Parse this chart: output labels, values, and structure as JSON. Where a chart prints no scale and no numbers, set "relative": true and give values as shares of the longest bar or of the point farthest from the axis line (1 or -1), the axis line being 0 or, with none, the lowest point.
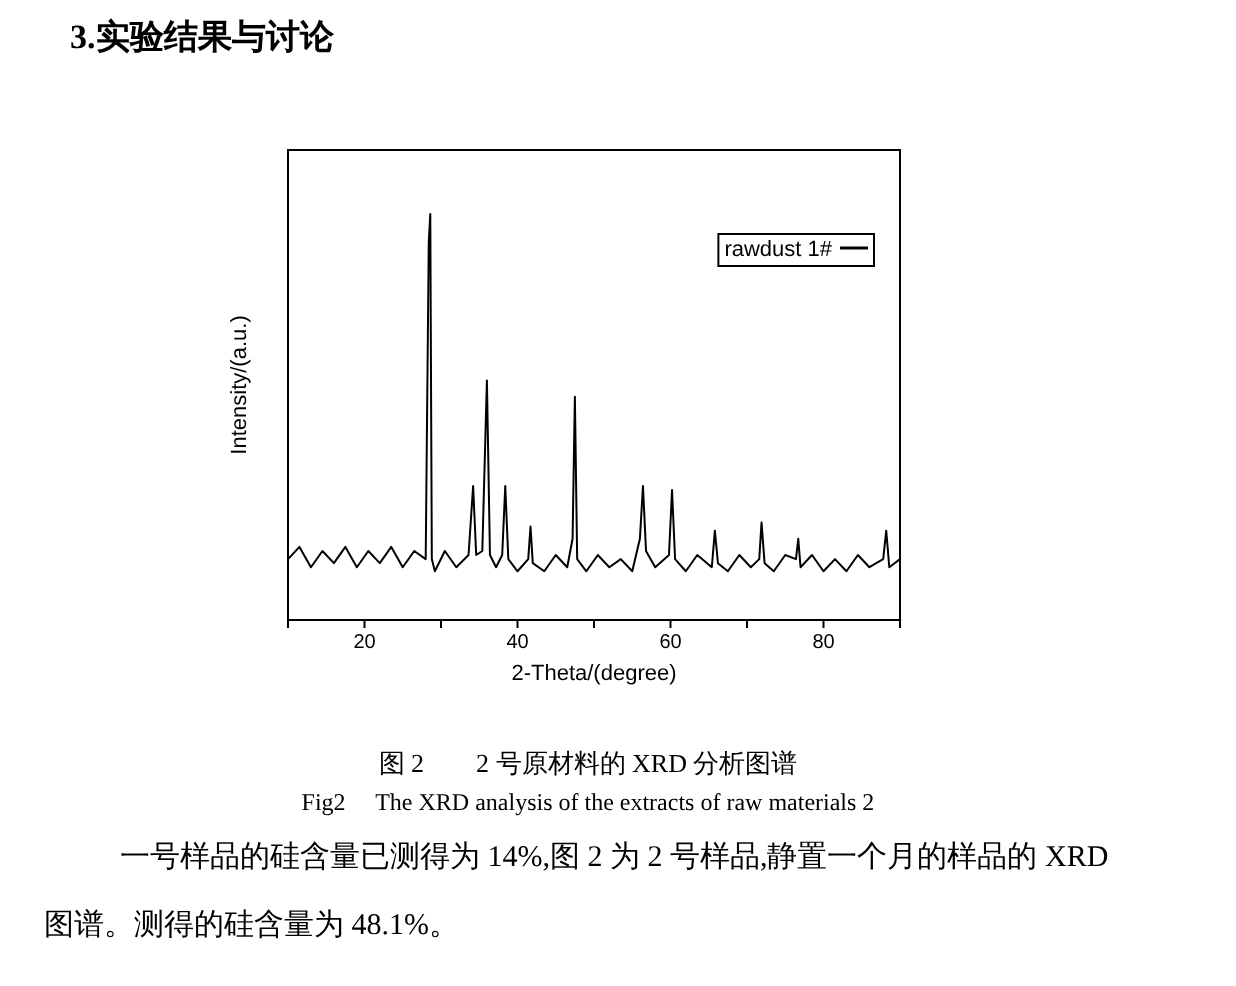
{
  "chart_data": {
    "type": "line",
    "xlabel": "2-Theta/(degree)",
    "ylabel": "Intensity/(a.u.)",
    "relative": true,
    "legend": "top right",
    "xlim": [
      10,
      90
    ],
    "xticks": [
      {
        "value": 10,
        "label": null
      },
      20,
      {
        "value": 30,
        "label": null
      },
      40,
      {
        "value": 50,
        "label": null
      },
      60,
      {
        "value": 70,
        "label": null
      },
      80,
      {
        "value": 90,
        "label": null
      }
    ],
    "x": [
      10,
      11.5,
      13,
      14.5,
      16,
      17.5,
      19,
      20.5,
      22,
      23.5,
      25,
      26.5,
      28.0,
      28.4,
      28.6,
      28.8,
      29.2,
      30.5,
      32,
      33.6,
      34.2,
      34.6,
      35.4,
      36.0,
      36.4,
      37.2,
      38.0,
      38.4,
      38.8,
      40,
      41.4,
      41.7,
      42,
      43.5,
      45,
      46.5,
      47.2,
      47.5,
      47.8,
      49,
      50.5,
      52,
      53.5,
      55,
      56.0,
      56.4,
      56.8,
      58,
      59.8,
      60.2,
      60.6,
      62,
      63.5,
      65.4,
      65.8,
      66.2,
      67.5,
      69,
      70.5,
      71.6,
      71.9,
      72.3,
      73.5,
      75,
      76.4,
      76.7,
      77,
      78.5,
      80,
      81.5,
      83,
      84.5,
      86,
      87.8,
      88.2,
      88.6,
      90
    ],
    "series": [
      {
        "name": "rawdust 1#",
        "color": "#000000",
        "values": [
          0.15,
          0.18,
          0.13,
          0.17,
          0.14,
          0.18,
          0.13,
          0.17,
          0.14,
          0.18,
          0.13,
          0.17,
          0.15,
          0.93,
          1.0,
          0.15,
          0.12,
          0.17,
          0.13,
          0.16,
          0.33,
          0.16,
          0.17,
          0.59,
          0.16,
          0.13,
          0.16,
          0.33,
          0.15,
          0.12,
          0.15,
          0.23,
          0.14,
          0.12,
          0.16,
          0.13,
          0.2,
          0.55,
          0.15,
          0.12,
          0.16,
          0.13,
          0.15,
          0.12,
          0.2,
          0.33,
          0.17,
          0.13,
          0.16,
          0.32,
          0.15,
          0.12,
          0.16,
          0.13,
          0.22,
          0.14,
          0.12,
          0.16,
          0.13,
          0.15,
          0.24,
          0.14,
          0.12,
          0.16,
          0.15,
          0.2,
          0.13,
          0.16,
          0.12,
          0.15,
          0.12,
          0.16,
          0.13,
          0.15,
          0.22,
          0.13,
          0.15
        ]
      }
    ],
    "annotations": [
      "3.实验结果与讨论",
      "图 2　　2 号原材料的 XRD 分析图谱",
      "Fig2　 The XRD analysis of the extracts of raw materials 2",
      "一号样品的硅含量已测得为 14%,图 2 为 2 号样品,静置一个月的样品的 XRD",
      "图谱。测得的硅含量为 48.1%。"
    ]
  }
}
